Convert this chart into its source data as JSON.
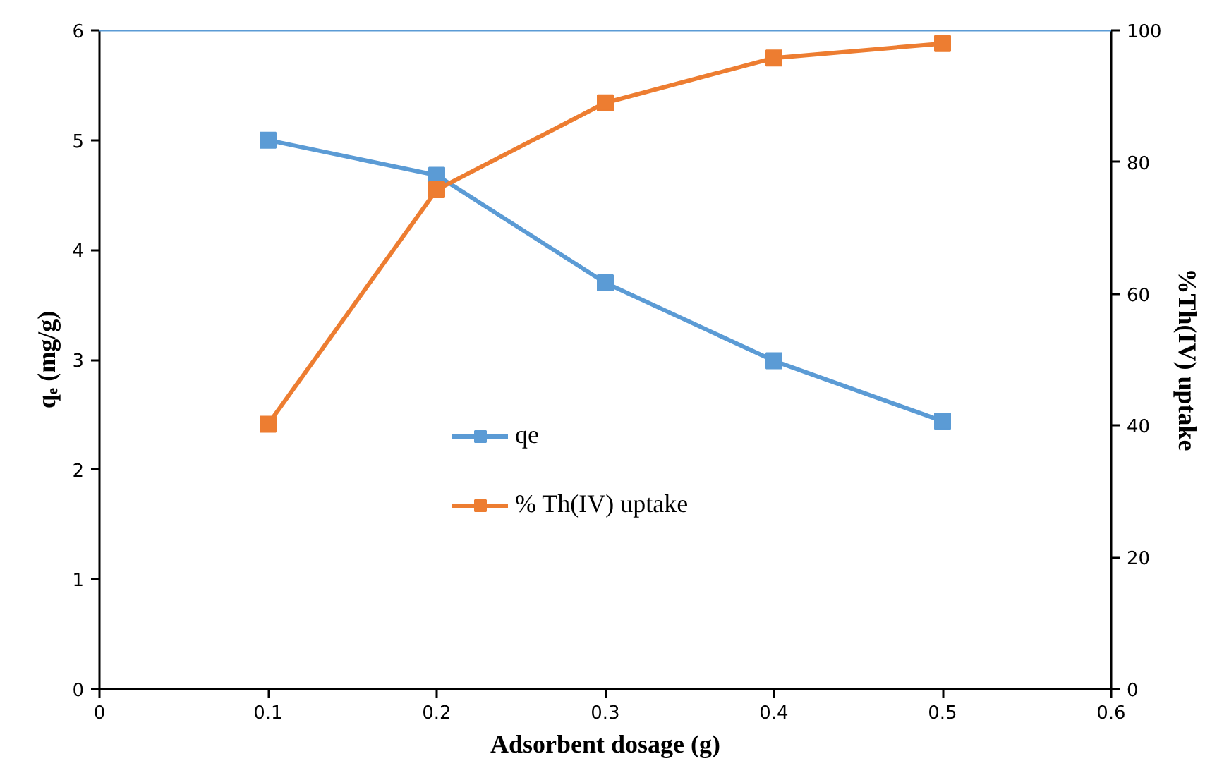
{
  "chart_data": {
    "type": "line",
    "xlabel": "Adsorbent dosage (g)",
    "ylabel": "qₑ (mg/g)",
    "y2label": "%Th(IV) uptake",
    "x": [
      0.1,
      0.2,
      0.3,
      0.4,
      0.5
    ],
    "series": [
      {
        "name": "qe",
        "color": "#5b9bd5",
        "values": [
          5.0,
          4.68,
          3.7,
          2.99,
          2.44
        ]
      },
      {
        "name": "% Th(IV) uptake",
        "color": "#ed7d31",
        "axis": "y2",
        "values": [
          40.2,
          75.8,
          89.0,
          95.8,
          98.0
        ]
      }
    ],
    "xlim": [
      0,
      0.6
    ],
    "xticks": [
      0,
      0.1,
      0.2,
      0.3,
      0.4,
      0.5,
      0.6
    ],
    "ylim": [
      0,
      6
    ],
    "yticks": [
      0,
      1,
      2,
      3,
      4,
      5,
      6
    ],
    "y2lim": [
      0,
      100
    ],
    "y2ticks": [
      0,
      20,
      40,
      60,
      80,
      100
    ],
    "ref_lines": [
      {
        "axis": "y",
        "value": 6,
        "color": "#5b9bd5"
      }
    ],
    "marker": "square",
    "legend": "center",
    "grid": false
  }
}
